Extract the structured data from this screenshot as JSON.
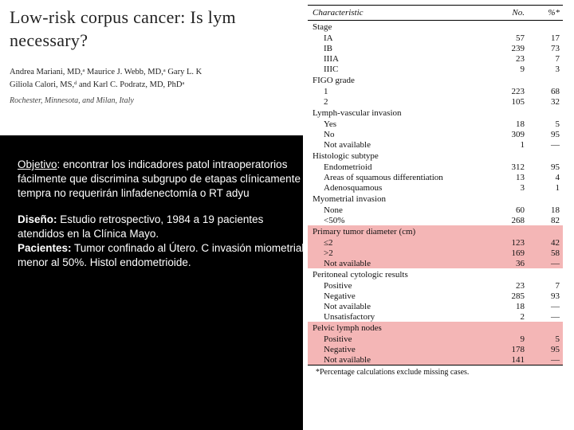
{
  "paper": {
    "title_line1": "Low-risk corpus cancer: Is lym",
    "title_line2": "necessary?",
    "authors_line1": "Andrea Mariani, MD,ᵃ Maurice J. Webb, MD,ᵃ Gary L. K",
    "authors_line2": "Giliola Calori, MS,ᵈ and Karl C. Podratz, MD, PhDᵃ",
    "affiliation": "Rochester, Minnesota, and Milan, Italy"
  },
  "overlay": {
    "objetivo_label": "Objetivo",
    "objetivo_text": ": encontrar los indicadores patol intraoperatorios fácilmente que discrimina subgrupo de etapas clínicamente tempra no requerirán linfadenectomía o RT adyu",
    "diseno_label": "Diseño:",
    "diseno_text": " Estudio retrospectivo, 1984 a 19 pacientes atendidos en la  Clínica Mayo.",
    "pacientes_label": "Pacientes:",
    "pacientes_text": "  Tumor confinado al Útero. C invasión miometrial menor al 50%. Histol endometrioide."
  },
  "table": {
    "head": {
      "c1": "Characteristic",
      "c2": "No.",
      "c3": "%*"
    },
    "groups": [
      {
        "label": "Stage",
        "hl": false,
        "rows": [
          {
            "c1": "IA",
            "c2": "57",
            "c3": "17"
          },
          {
            "c1": "IB",
            "c2": "239",
            "c3": "73"
          },
          {
            "c1": "IIIA",
            "c2": "23",
            "c3": "7"
          },
          {
            "c1": "IIIC",
            "c2": "9",
            "c3": "3"
          }
        ]
      },
      {
        "label": "FIGO grade",
        "hl": false,
        "rows": [
          {
            "c1": "1",
            "c2": "223",
            "c3": "68"
          },
          {
            "c1": "2",
            "c2": "105",
            "c3": "32"
          }
        ]
      },
      {
        "label": "Lymph-vascular invasion",
        "hl": false,
        "rows": [
          {
            "c1": "Yes",
            "c2": "18",
            "c3": "5"
          },
          {
            "c1": "No",
            "c2": "309",
            "c3": "95"
          },
          {
            "c1": "Not available",
            "c2": "1",
            "c3": "—"
          }
        ]
      },
      {
        "label": "Histologic subtype",
        "hl": false,
        "rows": [
          {
            "c1": "Endometrioid",
            "c2": "312",
            "c3": "95"
          },
          {
            "c1": "Areas of squamous differentiation",
            "c2": "13",
            "c3": "4"
          },
          {
            "c1": "Adenosquamous",
            "c2": "3",
            "c3": "1"
          }
        ]
      },
      {
        "label": "Myometrial invasion",
        "hl": false,
        "rows": [
          {
            "c1": "None",
            "c2": "60",
            "c3": "18"
          },
          {
            "c1": "<50%",
            "c2": "268",
            "c3": "82"
          }
        ]
      },
      {
        "label": "Primary tumor diameter (cm)",
        "hl": true,
        "rows": [
          {
            "c1": "≤2",
            "c2": "123",
            "c3": "42"
          },
          {
            "c1": ">2",
            "c2": "169",
            "c3": "58"
          },
          {
            "c1": "Not available",
            "c2": "36",
            "c3": "—"
          }
        ]
      },
      {
        "label": "Peritoneal cytologic results",
        "hl": false,
        "rows": [
          {
            "c1": "Positive",
            "c2": "23",
            "c3": "7"
          },
          {
            "c1": "Negative",
            "c2": "285",
            "c3": "93"
          },
          {
            "c1": "Not available",
            "c2": "18",
            "c3": "—"
          },
          {
            "c1": "Unsatisfactory",
            "c2": "2",
            "c3": "—"
          }
        ]
      },
      {
        "label": "Pelvic lymph nodes",
        "hl": true,
        "rows": [
          {
            "c1": "Positive",
            "c2": "9",
            "c3": "5"
          },
          {
            "c1": "Negative",
            "c2": "178",
            "c3": "95"
          },
          {
            "c1": "Not available",
            "c2": "141",
            "c3": "—"
          }
        ]
      }
    ],
    "footnote": "*Percentage calculations exclude missing cases."
  },
  "colors": {
    "highlight": "#f4b6b6",
    "black_box": "#000000",
    "text": "#111111"
  }
}
